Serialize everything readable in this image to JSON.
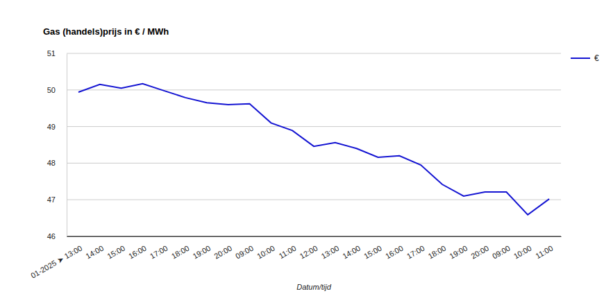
{
  "chart_data": {
    "type": "line",
    "title": "Gas (handels)prijs in € / MWh",
    "x_label": "Datum/tijd",
    "categories": [
      "01-2025 ➤ 13:00",
      "14:00",
      "15:00",
      "16:00",
      "17:00",
      "18:00",
      "19:00",
      "20:00",
      "09:00",
      "10:00",
      "11:00",
      "12:00",
      "13:00",
      "14:00",
      "15:00",
      "16:00",
      "17:00",
      "18:00",
      "19:00",
      "20:00",
      "09:00",
      "10:00",
      "11:00"
    ],
    "series": [
      {
        "name": "€",
        "color": "#1414d2",
        "values": [
          49.94,
          50.15,
          50.05,
          50.17,
          49.98,
          49.79,
          49.65,
          49.6,
          49.62,
          49.1,
          48.89,
          48.46,
          48.56,
          48.4,
          48.16,
          48.2,
          47.95,
          47.42,
          47.1,
          47.21,
          47.21,
          46.59,
          47.02
        ]
      }
    ],
    "ylim": [
      46,
      51
    ],
    "yticks": [
      46,
      47,
      48,
      49,
      50,
      51
    ],
    "grid": true,
    "legend": "top-right"
  }
}
